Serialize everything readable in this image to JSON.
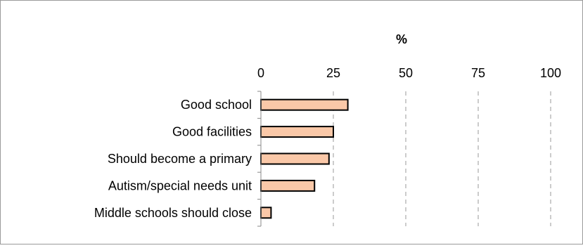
{
  "chart_data": {
    "type": "bar",
    "orientation": "horizontal",
    "title": "",
    "xlabel": "%",
    "ylabel": "",
    "xlim": [
      0,
      100
    ],
    "x_ticks": [
      0,
      25,
      50,
      75,
      100
    ],
    "x_tick_labels": [
      "0",
      "25",
      "50",
      "75",
      "100"
    ],
    "x_axis_position": "top",
    "grid": "vertical-dashed",
    "legend": "none",
    "categories": [
      "Good school",
      "Good facilities",
      "Should become a primary",
      "Autism/special needs unit",
      "Middle schools should close"
    ],
    "values": [
      30,
      25,
      23.5,
      18.5,
      3.5
    ],
    "bar_color": "#fac8a8",
    "bar_edge_color": "#000000",
    "grid_color": "#999999"
  }
}
